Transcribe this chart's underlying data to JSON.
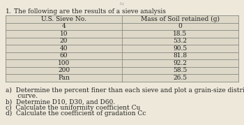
{
  "title_num": "1.",
  "title_text": "The following are the results of a sieve analysis",
  "col1_header": "U.S. Sieve No.",
  "col2_header": "Mass of Soil retained (g)",
  "rows": [
    [
      "4",
      "0"
    ],
    [
      "10",
      "18.5"
    ],
    [
      "20",
      "53.2"
    ],
    [
      "40",
      "90.5"
    ],
    [
      "60",
      "81.8"
    ],
    [
      "100",
      "92.2"
    ],
    [
      "200",
      "58.5"
    ],
    [
      "Pan",
      "26.5"
    ]
  ],
  "q_a": "a)  Determine the percent finer than each sieve and plot a grain-size distribution",
  "q_a2": "      curve.",
  "q_b": "b)  Determine D10, D30, and D60.",
  "q_c": "c)  Calculate the uniformity coefficient Cu",
  "q_d": "d)  Calculate the coefficient of gradation Cc",
  "bg_color": "#ede8da",
  "table_line_color": "#888880",
  "font_size": 6.5,
  "text_color": "#222222"
}
